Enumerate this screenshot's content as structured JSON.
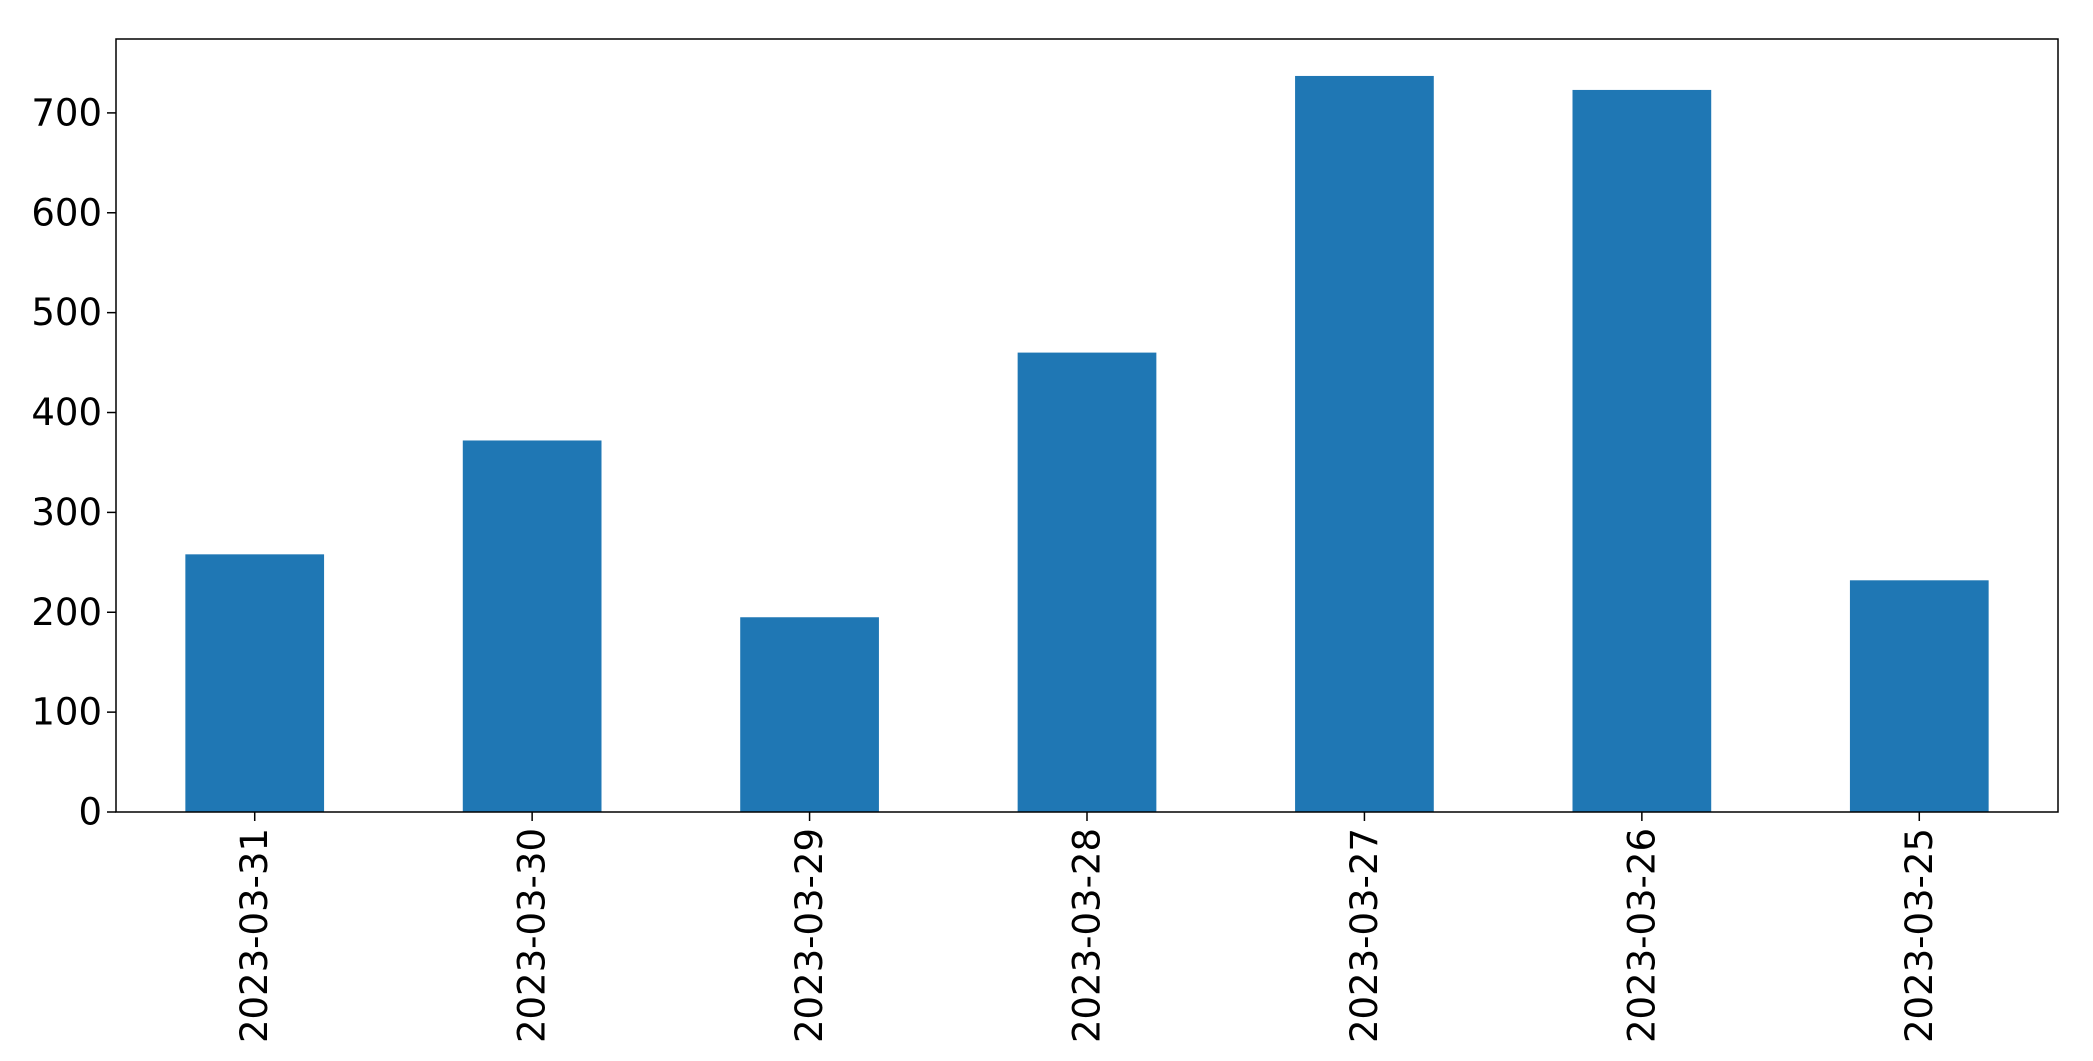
{
  "chart_data": {
    "type": "bar",
    "categories": [
      "2023-03-31",
      "2023-03-30",
      "2023-03-29",
      "2023-03-28",
      "2023-03-27",
      "2023-03-26",
      "2023-03-25"
    ],
    "series": [
      {
        "values": [
          258,
          372,
          195,
          460,
          737,
          723,
          232
        ],
        "color": "#1f77b4"
      }
    ],
    "title": "",
    "xlabel": "",
    "ylabel": "",
    "ylim": [
      0,
      774
    ],
    "yticks": [
      0,
      100,
      200,
      300,
      400,
      500,
      600,
      700
    ],
    "grid": false,
    "legend": "none",
    "x_tick_rotation": "vertical"
  }
}
